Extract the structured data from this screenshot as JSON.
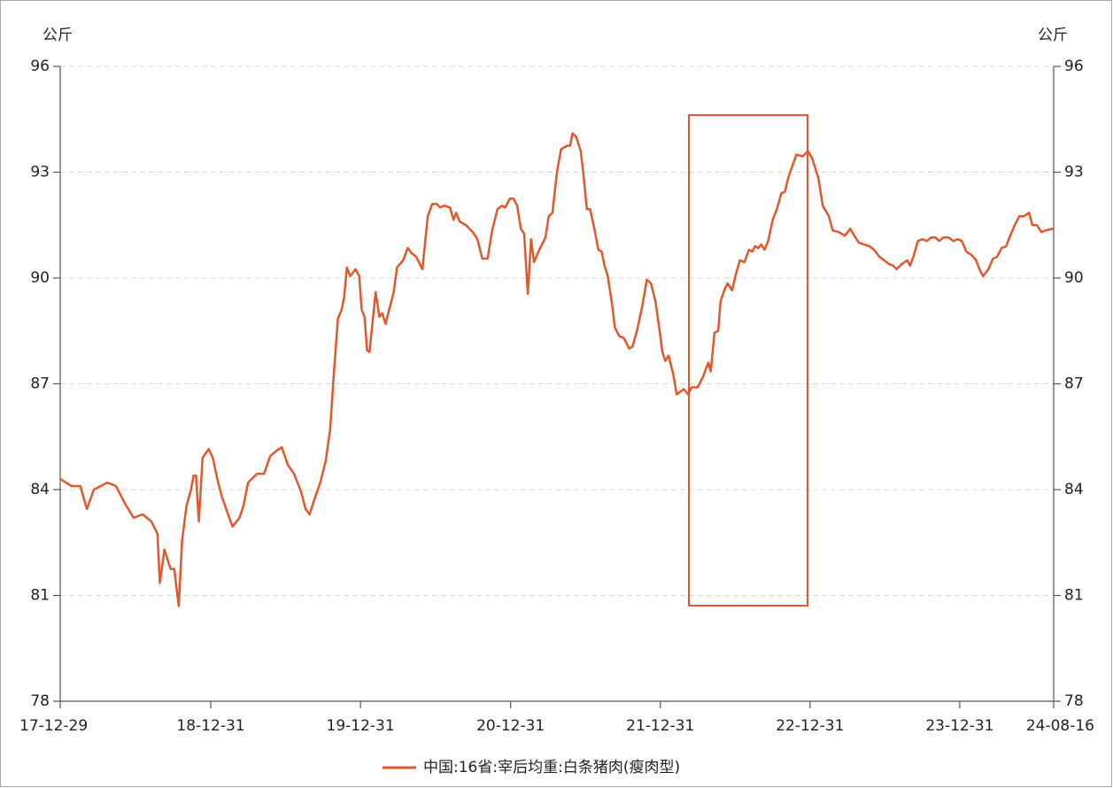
{
  "chart_data": {
    "type": "line",
    "y_label": "公斤",
    "y2_label": "公斤",
    "xlim": [
      "17-12-29",
      "24-08-16"
    ],
    "xticks": [
      "17-12-29",
      "18-12-31",
      "19-12-31",
      "20-12-31",
      "21-12-31",
      "22-12-31",
      "23-12-31",
      "24-08-16"
    ],
    "ylim": [
      78,
      96
    ],
    "yticks": [
      78,
      81,
      84,
      87,
      90,
      93,
      96
    ],
    "y2lim": [
      78,
      96
    ],
    "y2ticks": [
      78,
      81,
      84,
      87,
      90,
      93,
      96
    ],
    "grid": true,
    "legend": "bottom",
    "x": [
      "17-12-29",
      "18-01-26",
      "18-02-16",
      "18-03-04",
      "18-03-21",
      "18-04-23",
      "18-05-14",
      "18-06-05",
      "18-06-26",
      "18-07-18",
      "18-08-08",
      "18-08-23",
      "18-08-29",
      "18-09-09",
      "18-09-24",
      "18-10-03",
      "18-10-14",
      "18-10-22",
      "18-11-02",
      "18-11-13",
      "18-11-19",
      "18-11-25",
      "18-12-02",
      "18-12-11",
      "18-12-26",
      "19-01-05",
      "19-01-16",
      "19-01-27",
      "19-02-22",
      "19-03-11",
      "19-03-21",
      "19-04-01",
      "19-04-23",
      "19-05-10",
      "19-05-25",
      "19-06-09",
      "19-06-22",
      "19-07-07",
      "19-07-22",
      "19-08-08",
      "19-08-19",
      "19-08-29",
      "19-09-09",
      "19-09-24",
      "19-10-07",
      "19-10-18",
      "19-10-26",
      "19-11-06",
      "19-11-15",
      "19-11-21",
      "19-11-28",
      "19-12-06",
      "19-12-19",
      "19-12-28",
      "20-01-03",
      "20-01-10",
      "20-01-16",
      "20-01-22",
      "20-02-06",
      "20-02-15",
      "20-02-22",
      "20-03-01",
      "20-03-21",
      "20-03-29",
      "20-04-13",
      "20-04-24",
      "20-05-04",
      "20-05-15",
      "20-05-30",
      "20-06-12",
      "20-06-23",
      "20-07-04",
      "20-07-12",
      "20-07-23",
      "20-08-05",
      "20-08-14",
      "20-08-20",
      "20-08-29",
      "20-09-13",
      "20-09-30",
      "20-10-11",
      "20-10-23",
      "20-11-05",
      "20-11-16",
      "20-11-29",
      "20-12-10",
      "20-12-18",
      "20-12-29",
      "21-01-07",
      "21-01-16",
      "21-01-25",
      "21-02-02",
      "21-02-11",
      "21-02-19",
      "21-02-26",
      "21-03-11",
      "21-03-26",
      "21-04-03",
      "21-04-12",
      "21-04-23",
      "21-05-03",
      "21-05-18",
      "21-05-25",
      "21-05-31",
      "21-06-09",
      "21-06-20",
      "21-06-26",
      "21-07-05",
      "21-07-13",
      "21-07-24",
      "21-08-02",
      "21-08-10",
      "21-08-17",
      "21-08-25",
      "21-09-05",
      "21-09-11",
      "21-09-22",
      "21-10-03",
      "21-10-16",
      "21-10-24",
      "21-11-04",
      "21-11-17",
      "21-11-28",
      "21-12-08",
      "21-12-19",
      "21-12-30",
      "22-01-05",
      "22-01-12",
      "22-01-20",
      "22-01-31",
      "22-02-09",
      "22-02-26",
      "22-03-09",
      "22-03-17",
      "22-04-01",
      "22-04-14",
      "22-04-27",
      "22-05-03",
      "22-05-12",
      "22-05-21",
      "22-05-27",
      "22-06-05",
      "22-06-13",
      "22-06-24",
      "22-07-03",
      "22-07-13",
      "22-07-24",
      "22-08-04",
      "22-08-12",
      "22-08-19",
      "22-08-27",
      "22-09-03",
      "22-09-11",
      "22-09-20",
      "22-10-01",
      "22-10-11",
      "22-10-22",
      "22-10-31",
      "22-11-08",
      "22-11-17",
      "22-11-28",
      "22-12-13",
      "22-12-26",
      "23-01-05",
      "23-01-20",
      "23-01-31",
      "23-02-15",
      "23-02-24",
      "23-03-11",
      "23-03-26",
      "23-04-08",
      "23-04-18",
      "23-04-29",
      "23-05-12",
      "23-05-25",
      "23-06-05",
      "23-06-18",
      "23-06-30",
      "23-07-11",
      "23-07-22",
      "23-07-30",
      "23-08-12",
      "23-08-25",
      "23-09-01",
      "23-09-09",
      "23-09-20",
      "23-10-01",
      "23-10-12",
      "23-10-22",
      "23-11-02",
      "23-11-11",
      "23-11-21",
      "23-12-04",
      "23-12-15",
      "23-12-26",
      "24-01-05",
      "24-01-16",
      "24-01-29",
      "24-02-09",
      "24-02-17",
      "24-02-26",
      "24-03-10",
      "24-03-21",
      "24-03-31",
      "24-04-11",
      "24-04-22",
      "24-05-02",
      "24-05-13",
      "24-05-24",
      "24-06-04",
      "24-06-17",
      "24-06-25",
      "24-07-06",
      "24-07-17",
      "24-07-27",
      "24-08-16"
    ],
    "series": [
      {
        "name": "中国:16省:宰后均重:白条猪肉(瘦肉型)",
        "color": "#e2572b",
        "values": [
          84.3,
          84.1,
          84.1,
          83.45,
          84.0,
          84.2,
          84.1,
          83.6,
          83.2,
          83.3,
          83.1,
          82.75,
          81.35,
          82.3,
          81.75,
          81.75,
          80.7,
          82.55,
          83.55,
          84.0,
          84.4,
          84.4,
          83.1,
          84.9,
          85.15,
          84.9,
          84.3,
          83.8,
          82.95,
          83.2,
          83.55,
          84.2,
          84.45,
          84.45,
          84.95,
          85.1,
          85.2,
          84.7,
          84.45,
          83.95,
          83.45,
          83.3,
          83.7,
          84.2,
          84.8,
          85.7,
          87.1,
          88.85,
          89.1,
          89.45,
          90.3,
          90.05,
          90.25,
          90.05,
          89.1,
          88.9,
          87.95,
          87.9,
          89.6,
          88.9,
          89.0,
          88.7,
          89.6,
          90.3,
          90.5,
          90.85,
          90.7,
          90.6,
          90.25,
          91.75,
          92.1,
          92.1,
          92.0,
          92.05,
          92.0,
          91.65,
          91.85,
          91.6,
          91.5,
          91.3,
          91.1,
          90.55,
          90.55,
          91.35,
          91.95,
          92.05,
          92.0,
          92.25,
          92.25,
          92.05,
          91.4,
          91.25,
          89.55,
          91.1,
          90.45,
          90.8,
          91.15,
          91.75,
          91.85,
          93.0,
          93.65,
          93.75,
          93.75,
          94.1,
          94.0,
          93.6,
          93.0,
          91.95,
          91.95,
          91.35,
          90.8,
          90.75,
          90.35,
          90.05,
          89.2,
          88.6,
          88.35,
          88.3,
          88.0,
          88.05,
          88.5,
          89.2,
          89.95,
          89.85,
          89.35,
          88.45,
          87.9,
          87.65,
          87.8,
          87.3,
          86.7,
          86.85,
          86.7,
          86.9,
          86.9,
          87.2,
          87.6,
          87.35,
          88.45,
          88.5,
          89.35,
          89.65,
          89.85,
          89.65,
          90.1,
          90.5,
          90.45,
          90.8,
          90.75,
          90.9,
          90.85,
          90.95,
          90.8,
          91.05,
          91.65,
          91.95,
          92.4,
          92.45,
          92.85,
          93.15,
          93.5,
          93.45,
          93.6,
          93.4,
          92.85,
          92.05,
          91.75,
          91.35,
          91.3,
          91.2,
          91.4,
          91.2,
          91.0,
          90.95,
          90.9,
          90.8,
          90.6,
          90.5,
          90.4,
          90.35,
          90.25,
          90.4,
          90.5,
          90.35,
          90.6,
          91.05,
          91.1,
          91.05,
          91.15,
          91.15,
          91.05,
          91.15,
          91.15,
          91.05,
          91.1,
          91.05,
          90.75,
          90.65,
          90.5,
          90.25,
          90.05,
          90.25,
          90.55,
          90.6,
          90.85,
          90.9,
          91.2,
          91.5,
          91.75,
          91.75,
          91.85,
          91.5,
          91.5,
          91.3,
          91.35,
          91.4
        ]
      }
    ]
  }
}
